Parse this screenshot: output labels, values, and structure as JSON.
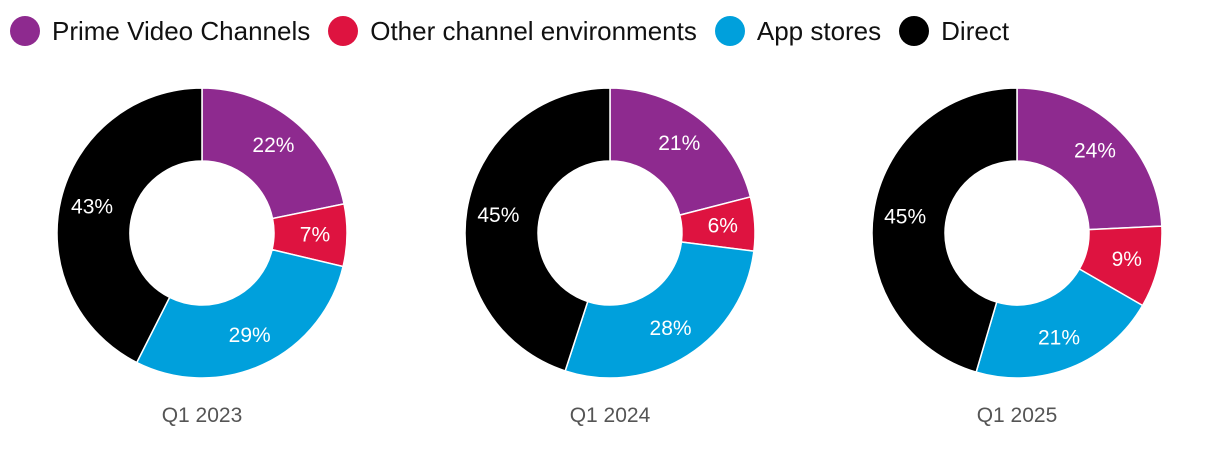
{
  "legend": [
    {
      "name": "Prime Video Channels",
      "color": "#8E2A8F"
    },
    {
      "name": "Other channel environments",
      "color": "#DE1340"
    },
    {
      "name": "App stores",
      "color": "#00A0DC"
    },
    {
      "name": "Direct",
      "color": "#000000"
    }
  ],
  "chart_data": [
    {
      "type": "pie",
      "variant": "donut",
      "caption": "Q1 2023",
      "categories": [
        "Prime Video Channels",
        "Other channel environments",
        "App stores",
        "Direct"
      ],
      "values": [
        22,
        7,
        29,
        43
      ],
      "labels": [
        "22%",
        "7%",
        "29%",
        "43%"
      ],
      "colors": [
        "#8E2A8F",
        "#DE1340",
        "#00A0DC",
        "#000000"
      ],
      "legend_position": "top-left"
    },
    {
      "type": "pie",
      "variant": "donut",
      "caption": "Q1 2024",
      "categories": [
        "Prime Video Channels",
        "Other channel environments",
        "App stores",
        "Direct"
      ],
      "values": [
        21,
        6,
        28,
        45
      ],
      "labels": [
        "21%",
        "6%",
        "28%",
        "45%"
      ],
      "colors": [
        "#8E2A8F",
        "#DE1340",
        "#00A0DC",
        "#000000"
      ],
      "legend_position": "top-left"
    },
    {
      "type": "pie",
      "variant": "donut",
      "caption": "Q1 2025",
      "categories": [
        "Prime Video Channels",
        "Other channel environments",
        "App stores",
        "Direct"
      ],
      "values": [
        24,
        9,
        21,
        45
      ],
      "labels": [
        "24%",
        "9%",
        "21%",
        "45%"
      ],
      "colors": [
        "#8E2A8F",
        "#DE1340",
        "#00A0DC",
        "#000000"
      ],
      "legend_position": "top-left"
    }
  ]
}
